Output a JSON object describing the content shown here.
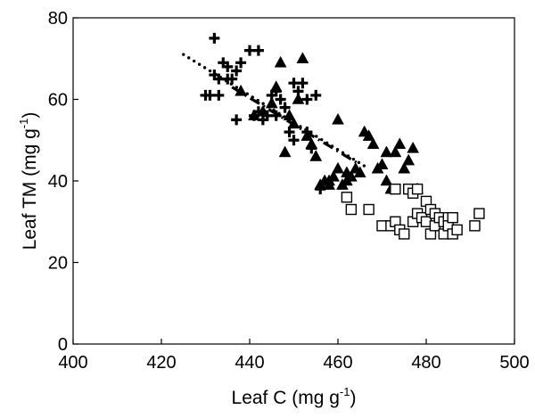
{
  "chart_data": {
    "type": "scatter",
    "title": "",
    "xlabel": {
      "main": "Leaf C (mg g",
      "sup": "-1",
      "close": ")"
    },
    "ylabel": {
      "main": "Leaf TM (mg g",
      "sup": "-1",
      "close": ")"
    },
    "xlim": [
      400,
      500
    ],
    "ylim": [
      0,
      80
    ],
    "xticks": [
      400,
      420,
      440,
      460,
      480,
      500
    ],
    "yticks": [
      0,
      20,
      40,
      60,
      80
    ],
    "grid": false,
    "series": [
      {
        "name": "cross",
        "marker": "plus",
        "points": [
          [
            430,
            61
          ],
          [
            431,
            61
          ],
          [
            432,
            75
          ],
          [
            432,
            66
          ],
          [
            433,
            65
          ],
          [
            433,
            61
          ],
          [
            434,
            69
          ],
          [
            435,
            65
          ],
          [
            435,
            68
          ],
          [
            436,
            65
          ],
          [
            437,
            67
          ],
          [
            437,
            55
          ],
          [
            438,
            69
          ],
          [
            440,
            72
          ],
          [
            441,
            56
          ],
          [
            442,
            72
          ],
          [
            442,
            57
          ],
          [
            443,
            55
          ],
          [
            444,
            56
          ],
          [
            445,
            61
          ],
          [
            446,
            56
          ],
          [
            446,
            62
          ],
          [
            447,
            60
          ],
          [
            448,
            58
          ],
          [
            449,
            52
          ],
          [
            450,
            50
          ],
          [
            450,
            64
          ],
          [
            451,
            62
          ],
          [
            452,
            64
          ],
          [
            453,
            60
          ],
          [
            453,
            52
          ],
          [
            454,
            48
          ],
          [
            455,
            61
          ],
          [
            456,
            38
          ]
        ]
      },
      {
        "name": "triangle",
        "marker": "triangle",
        "points": [
          [
            438,
            62
          ],
          [
            441,
            56
          ],
          [
            443,
            57
          ],
          [
            445,
            59
          ],
          [
            446,
            63
          ],
          [
            447,
            69
          ],
          [
            448,
            47
          ],
          [
            449,
            56
          ],
          [
            450,
            54
          ],
          [
            451,
            60
          ],
          [
            452,
            70
          ],
          [
            453,
            51
          ],
          [
            454,
            49
          ],
          [
            455,
            46
          ],
          [
            456,
            39
          ],
          [
            457,
            40
          ],
          [
            458,
            40
          ],
          [
            458,
            39
          ],
          [
            459,
            41
          ],
          [
            460,
            43
          ],
          [
            460,
            55
          ],
          [
            461,
            39
          ],
          [
            462,
            40
          ],
          [
            462,
            42
          ],
          [
            463,
            41
          ],
          [
            464,
            43
          ],
          [
            465,
            42
          ],
          [
            466,
            52
          ],
          [
            467,
            51
          ],
          [
            468,
            49
          ],
          [
            469,
            43
          ],
          [
            470,
            44
          ],
          [
            471,
            40
          ],
          [
            471,
            47
          ],
          [
            472,
            38
          ],
          [
            473,
            47
          ],
          [
            474,
            49
          ],
          [
            475,
            43
          ],
          [
            476,
            45
          ],
          [
            477,
            48
          ],
          [
            478,
            38
          ]
        ]
      },
      {
        "name": "square",
        "marker": "square",
        "points": [
          [
            462,
            36
          ],
          [
            463,
            33
          ],
          [
            467,
            33
          ],
          [
            470,
            29
          ],
          [
            472,
            29
          ],
          [
            473,
            30
          ],
          [
            473,
            38
          ],
          [
            474,
            28
          ],
          [
            475,
            27
          ],
          [
            476,
            38
          ],
          [
            477,
            37
          ],
          [
            477,
            30
          ],
          [
            478,
            32
          ],
          [
            478,
            38
          ],
          [
            479,
            31
          ],
          [
            480,
            30
          ],
          [
            480,
            35
          ],
          [
            481,
            27
          ],
          [
            481,
            33
          ],
          [
            482,
            29
          ],
          [
            482,
            32
          ],
          [
            483,
            31
          ],
          [
            484,
            30
          ],
          [
            484,
            27
          ],
          [
            485,
            31
          ],
          [
            485,
            29
          ],
          [
            486,
            27
          ],
          [
            486,
            31
          ],
          [
            487,
            28
          ],
          [
            491,
            29
          ],
          [
            492,
            32
          ]
        ]
      }
    ],
    "trend_lines": [
      {
        "name": "dotted",
        "style": "dotted",
        "x": [
          425,
          467
        ],
        "y": [
          71,
          43
        ]
      },
      {
        "name": "dash-dot",
        "style": "dashdot",
        "x": [
          436,
          465
        ],
        "y": [
          63,
          44
        ]
      }
    ]
  }
}
